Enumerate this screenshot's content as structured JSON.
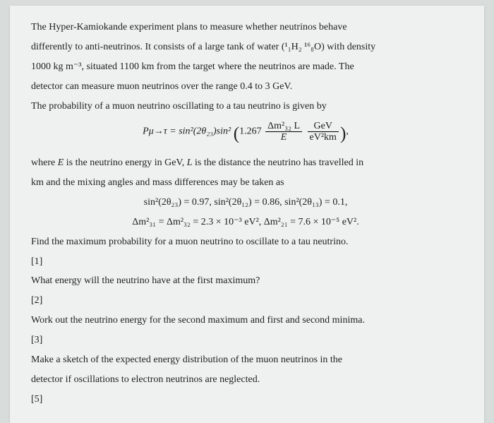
{
  "doc": {
    "p1a": "The Hyper-Kamiokande experiment plans to measure whether neutrinos behave",
    "p1b": "differently to anti-neutrinos. It consists of a large tank of water (",
    "water_formula": "¹₁H₂ ¹⁶₈O",
    "p1c": ") with density",
    "p2": "1000 kg m⁻³, situated 1100 km from the target where the neutrinos are made. The",
    "p3": "detector can measure muon neutrinos over the range 0.4 to 3 GeV.",
    "p4": "The probability of a muon neutrino oscillating to a tau neutrino is given by",
    "formula_lhs": "Pμ→τ = sin²(2θ₂₃)sin²",
    "formula_const": "1.267",
    "formula_num": "Δm²₃₂ L",
    "formula_den": "E",
    "formula_unit_num": "GeV",
    "formula_unit_den": "eV²km",
    "p5a": "where ",
    "p5b": " is the neutrino energy in GeV, ",
    "p5c": " is the distance the neutrino has travelled in",
    "E": "E",
    "L": "L",
    "p6": "km and the mixing angles and mass differences may be taken as",
    "mix1": "sin²(2θ₂₃) = 0.97,   sin²(2θ₁₂) = 0.86,      sin²(2θ₁₃) = 0.1,",
    "mix2": "Δm²₃₁ = Δm²₃₂ = 2.3 × 10⁻³ eV²,      Δm²₂₁ = 7.6 × 10⁻⁵ eV².",
    "q1": "Find the maximum probability for a muon neutrino to oscillate to a tau neutrino.",
    "q1n": "[1]",
    "q2": "What energy will the neutrino have at the first maximum?",
    "q2n": "[2]",
    "q3": "Work out the neutrino energy for the second maximum and first and second minima.",
    "q3n": "[3]",
    "q4a": "Make a sketch of the expected energy distribution of the muon neutrinos in the",
    "q4b": "detector if oscillations to electron neutrinos are neglected.",
    "q4n": "[5]"
  }
}
